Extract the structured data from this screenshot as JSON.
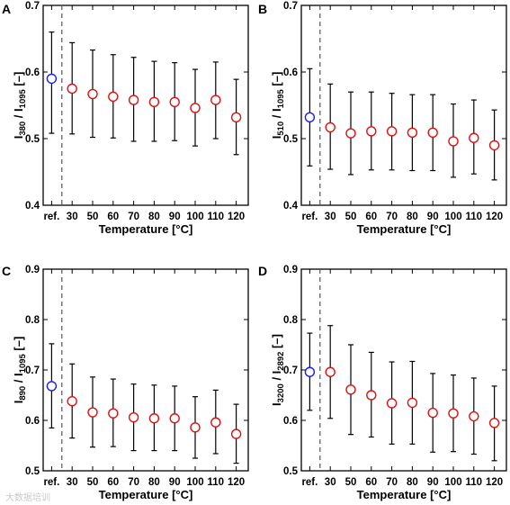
{
  "watermark": "大数据培训",
  "chart_data": [
    {
      "panel": "A",
      "type": "scatter",
      "ylabel": {
        "num": "I",
        "num_sub": "380",
        "sep": " / ",
        "den": "I",
        "den_sub": "1095",
        "unit": " [–]"
      },
      "xlabel": "Temperature [°C]",
      "ylim": [
        0.4,
        0.7
      ],
      "yticks": [
        "0.4",
        "0.5",
        "0.6",
        "0.7"
      ],
      "categories": [
        "ref.",
        "30",
        "50",
        "60",
        "70",
        "80",
        "90",
        "100",
        "110",
        "120"
      ],
      "values": [
        0.59,
        0.575,
        0.567,
        0.563,
        0.558,
        0.555,
        0.555,
        0.546,
        0.558,
        0.532
      ],
      "err_low": [
        0.508,
        0.507,
        0.502,
        0.501,
        0.496,
        0.496,
        0.497,
        0.489,
        0.5,
        0.476
      ],
      "err_high": [
        0.66,
        0.644,
        0.633,
        0.626,
        0.622,
        0.616,
        0.614,
        0.604,
        0.615,
        0.589
      ],
      "ref_color": "#1a1aff",
      "data_color": "#e01010"
    },
    {
      "panel": "B",
      "type": "scatter",
      "ylabel": {
        "num": "I",
        "num_sub": "510",
        "sep": " / ",
        "den": "I",
        "den_sub": "1095",
        "unit": " [–]"
      },
      "xlabel": "Temperature [°C]",
      "ylim": [
        0.4,
        0.7
      ],
      "yticks": [
        "0.4",
        "0.5",
        "0.6",
        "0.7"
      ],
      "categories": [
        "ref.",
        "30",
        "50",
        "60",
        "70",
        "80",
        "90",
        "100",
        "110",
        "120"
      ],
      "values": [
        0.532,
        0.517,
        0.508,
        0.511,
        0.511,
        0.509,
        0.509,
        0.496,
        0.501,
        0.49
      ],
      "err_low": [
        0.459,
        0.454,
        0.446,
        0.453,
        0.453,
        0.452,
        0.452,
        0.442,
        0.447,
        0.438
      ],
      "err_high": [
        0.605,
        0.582,
        0.57,
        0.57,
        0.568,
        0.566,
        0.566,
        0.552,
        0.558,
        0.543
      ],
      "ref_color": "#1a1aff",
      "data_color": "#e01010"
    },
    {
      "panel": "C",
      "type": "scatter",
      "ylabel": {
        "num": "I",
        "num_sub": "890",
        "sep": " / ",
        "den": "I",
        "den_sub": "1095",
        "unit": " [–]"
      },
      "xlabel": "Temperature [°C]",
      "ylim": [
        0.5,
        0.9
      ],
      "yticks": [
        "0.5",
        "0.6",
        "0.7",
        "0.8",
        "0.9"
      ],
      "categories": [
        "ref.",
        "30",
        "50",
        "60",
        "70",
        "80",
        "90",
        "100",
        "110",
        "120"
      ],
      "values": [
        0.668,
        0.638,
        0.616,
        0.614,
        0.606,
        0.604,
        0.604,
        0.586,
        0.596,
        0.573
      ],
      "err_low": [
        0.585,
        0.565,
        0.547,
        0.548,
        0.54,
        0.54,
        0.54,
        0.525,
        0.534,
        0.515
      ],
      "err_high": [
        0.752,
        0.712,
        0.686,
        0.682,
        0.672,
        0.67,
        0.668,
        0.647,
        0.66,
        0.632
      ],
      "ref_color": "#1a1aff",
      "data_color": "#e01010"
    },
    {
      "panel": "D",
      "type": "scatter",
      "ylabel": {
        "num": "I",
        "num_sub": "3200",
        "sep": " / ",
        "den": "I",
        "den_sub": "2892",
        "unit": " [–]"
      },
      "xlabel": "Temperature [°C]",
      "ylim": [
        0.5,
        0.9
      ],
      "yticks": [
        "0.5",
        "0.6",
        "0.7",
        "0.8",
        "0.9"
      ],
      "categories": [
        "ref.",
        "30",
        "50",
        "60",
        "70",
        "80",
        "90",
        "100",
        "110",
        "120"
      ],
      "values": [
        0.696,
        0.696,
        0.661,
        0.65,
        0.634,
        0.635,
        0.615,
        0.614,
        0.608,
        0.595
      ],
      "err_low": [
        0.62,
        0.604,
        0.572,
        0.567,
        0.553,
        0.553,
        0.537,
        0.538,
        0.533,
        0.52
      ],
      "err_high": [
        0.773,
        0.788,
        0.75,
        0.735,
        0.716,
        0.717,
        0.693,
        0.69,
        0.684,
        0.668
      ],
      "ref_color": "#1a1aff",
      "data_color": "#e01010"
    }
  ]
}
